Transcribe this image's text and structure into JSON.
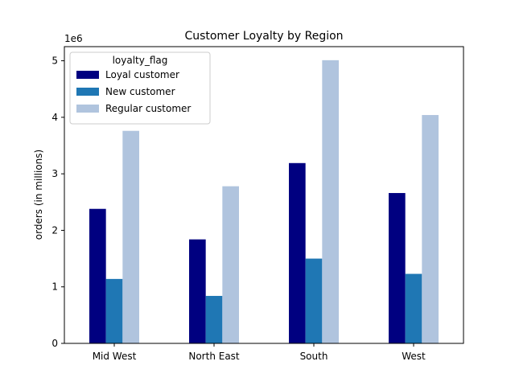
{
  "chart_data": {
    "type": "bar",
    "title": "Customer Loyalty by Region",
    "xlabel": "",
    "ylabel": "orders (in millions)",
    "y_scale_label": "1e6",
    "categories": [
      "Mid West",
      "North East",
      "South",
      "West"
    ],
    "ylim": [
      0,
      5250000
    ],
    "yticks": [
      0,
      1000000,
      2000000,
      3000000,
      4000000,
      5000000
    ],
    "ytick_labels": [
      "0",
      "1",
      "2",
      "3",
      "4",
      "5"
    ],
    "grid": false,
    "legend": {
      "title": "loyalty_flag",
      "placement": "top-left"
    },
    "series": [
      {
        "name": "Loyal customer",
        "color": "#000080",
        "values": [
          2380000,
          1840000,
          3190000,
          2660000
        ]
      },
      {
        "name": "New customer",
        "color": "#1f77b4",
        "values": [
          1140000,
          840000,
          1500000,
          1230000
        ]
      },
      {
        "name": "Regular customer",
        "color": "#b0c4de",
        "values": [
          3760000,
          2780000,
          5010000,
          4040000
        ]
      }
    ]
  }
}
